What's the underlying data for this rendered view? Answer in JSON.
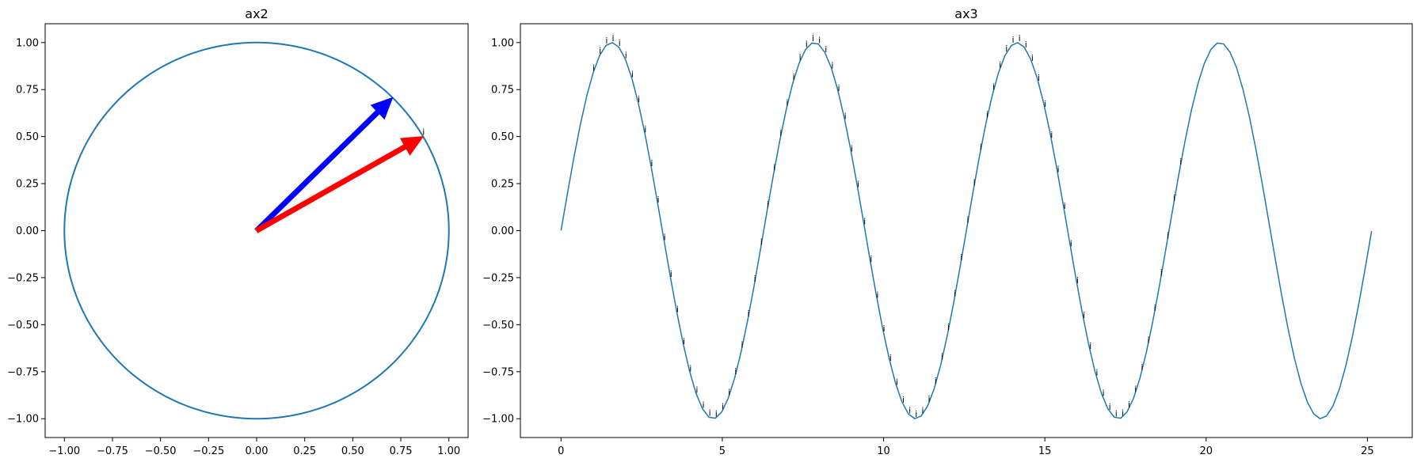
{
  "chart_data": [
    {
      "type": "line",
      "title": "ax2",
      "xlim": [
        -1.1,
        1.1
      ],
      "ylim": [
        -1.1,
        1.1
      ],
      "xticks": [
        -1.0,
        -0.75,
        -0.5,
        -0.25,
        0.0,
        0.25,
        0.5,
        0.75,
        1.0
      ],
      "yticks": [
        -1.0,
        -0.75,
        -0.5,
        -0.25,
        0.0,
        0.25,
        0.5,
        0.75,
        1.0
      ],
      "xtick_labels": [
        "−1.00",
        "−0.75",
        "−0.50",
        "−0.25",
        "0.00",
        "0.25",
        "0.50",
        "0.75",
        "1.00"
      ],
      "ytick_labels": [
        "−1.00",
        "−0.75",
        "−0.50",
        "−0.25",
        "0.00",
        "0.25",
        "0.50",
        "0.75",
        "1.00"
      ],
      "series": [
        {
          "shape": "circle",
          "center": [
            0,
            0
          ],
          "radius": 1.0,
          "color": "#1f77b4"
        }
      ],
      "arrows": [
        {
          "from": [
            0,
            0
          ],
          "to": [
            0.707,
            0.707
          ],
          "color": "#0000ff"
        },
        {
          "from": [
            0,
            0
          ],
          "to": [
            0.866,
            0.5
          ],
          "color": "#ff0000"
        }
      ],
      "annotations": [
        {
          "text": "i",
          "x": 0.866,
          "y": 0.5
        }
      ],
      "grid": false
    },
    {
      "type": "line",
      "title": "ax3",
      "xlim": [
        -1.26,
        26.39
      ],
      "ylim": [
        -1.1,
        1.1
      ],
      "xticks": [
        0,
        5,
        10,
        15,
        20,
        25
      ],
      "yticks": [
        -1.0,
        -0.75,
        -0.5,
        -0.25,
        0.0,
        0.25,
        0.5,
        0.75,
        1.0
      ],
      "xtick_labels": [
        "0",
        "5",
        "10",
        "15",
        "20",
        "25"
      ],
      "ytick_labels": [
        "−1.00",
        "−0.75",
        "−0.50",
        "−0.25",
        "0.00",
        "0.25",
        "0.50",
        "0.75",
        "1.00"
      ],
      "series": [
        {
          "function": "y = sin(x)",
          "x_range": [
            0,
            25.13
          ],
          "color": "#1f77b4"
        }
      ],
      "annotation_text": "i",
      "annotation_x_range": [
        1.0,
        19.2
      ],
      "annotation_step": 0.2,
      "grid": false
    }
  ]
}
